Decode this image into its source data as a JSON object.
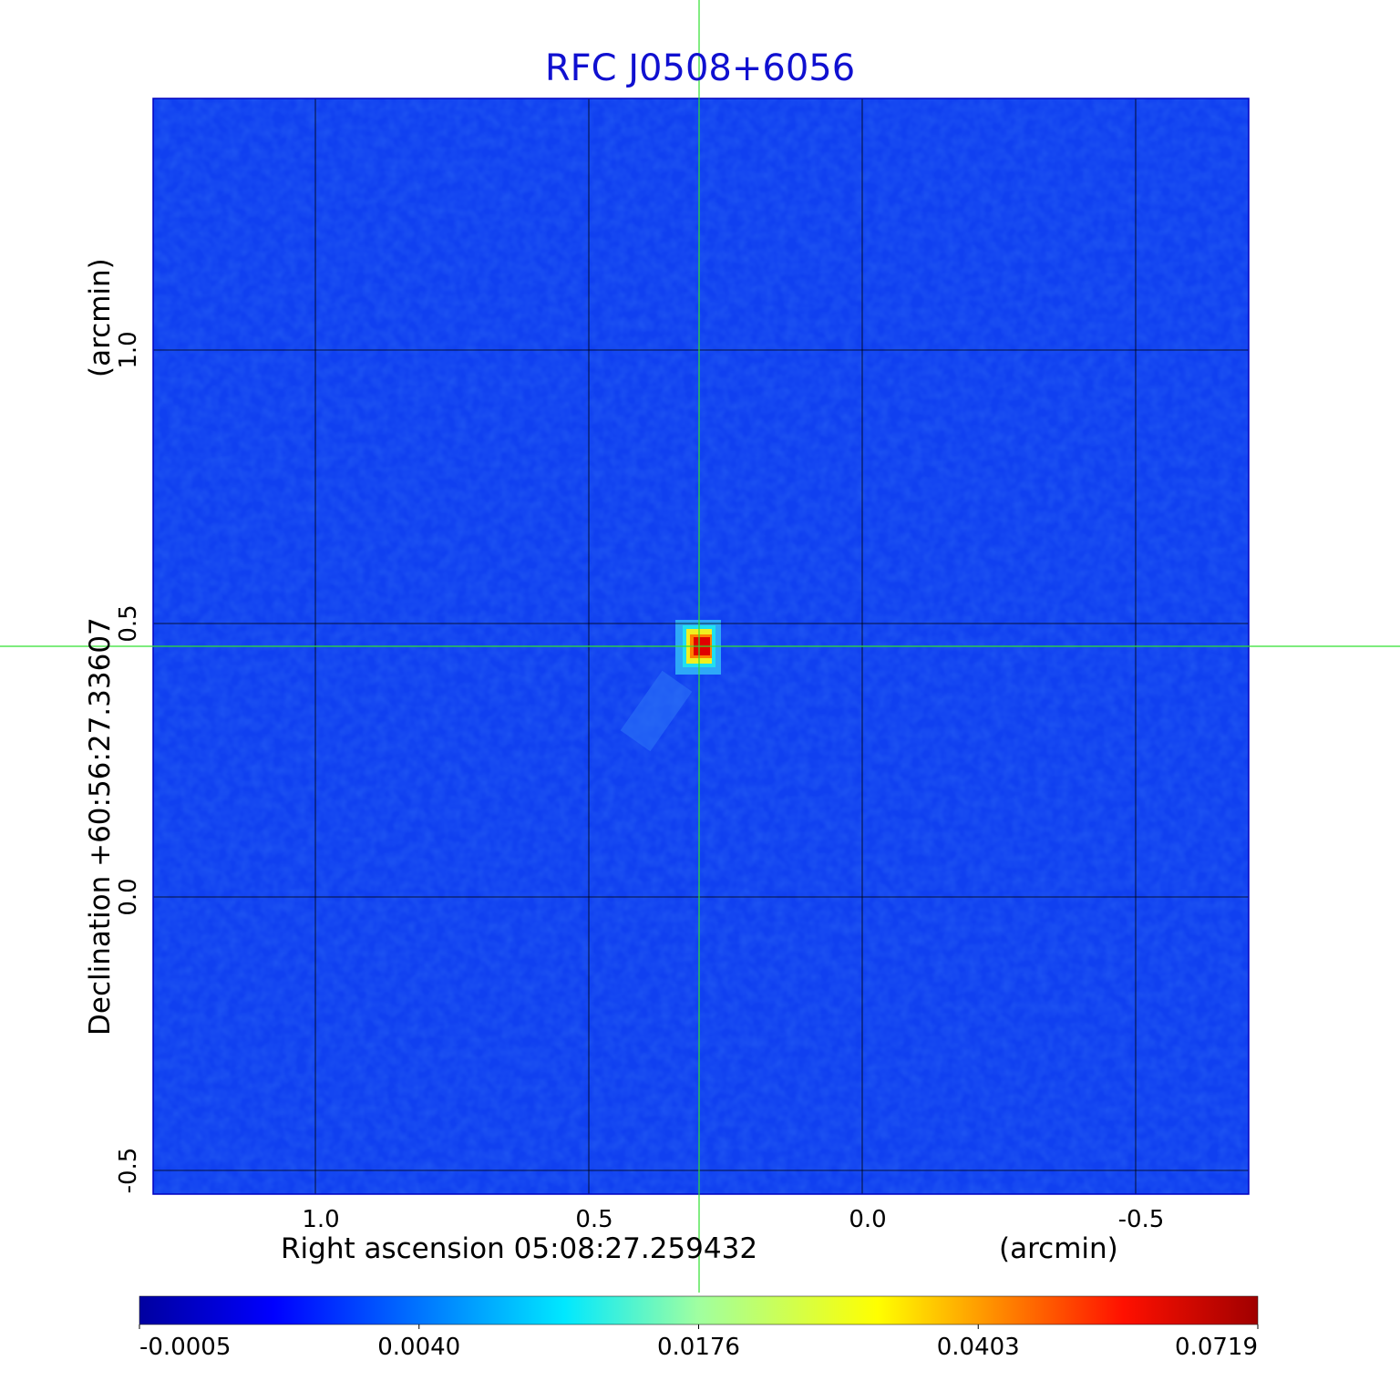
{
  "chart_data": {
    "type": "image",
    "title": "RFC J0508+6056",
    "x_label": "Right ascension  05:08:27.259432",
    "x_unit": "(arcmin)",
    "y_label": "Declination  +60:56:27.33607",
    "y_unit": "(arcmin)",
    "xlim": [
      1.2967,
      -0.7067
    ],
    "ylim": [
      -0.5433,
      1.46
    ],
    "xticks": [
      {
        "value": 1,
        "label": "1.0"
      },
      0.5,
      {
        "value": 0,
        "label": "0.0"
      },
      -0.5
    ],
    "yticks": [
      -0.5,
      {
        "value": 0,
        "label": "0.0"
      },
      0.5,
      {
        "value": 1,
        "label": "1.0"
      }
    ],
    "grid": true,
    "colorbar_ticks": [
      -0.0005,
      {
        "value": 0.004,
        "label": "0.0040"
      },
      0.0176,
      0.0403,
      0.0719
    ]
  }
}
